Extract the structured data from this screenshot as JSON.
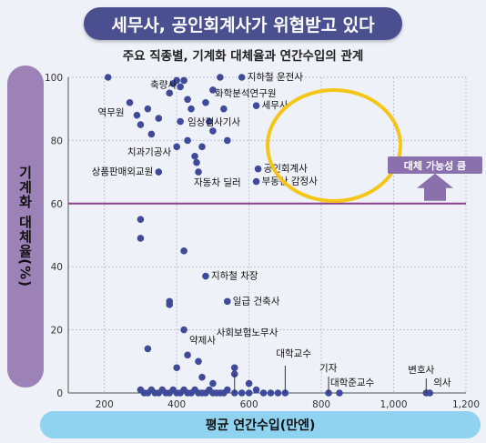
{
  "banner": "세무사, 공인회계사가 위협받고 있다",
  "chart_data": {
    "type": "scatter",
    "title": "주요 직종별, 기계화 대체율과 연간수입의 관계",
    "xlabel": "평균 연간수입(만엔)",
    "ylabel": "기계화 대체율(%)",
    "xlim": [
      100,
      1200
    ],
    "ylim": [
      0,
      100
    ],
    "xticks": [
      "200",
      "400",
      "600",
      "800",
      "1,000",
      "1,200"
    ],
    "yticks": [
      "0",
      "20",
      "40",
      "60",
      "80",
      "100"
    ],
    "threshold": 60,
    "annotation": "대체 가능성 큼",
    "highlight_color": "#f5c518",
    "point_color": "#3f4a9a",
    "labeled_points": [
      {
        "name": "지하철 운전사",
        "x": 580,
        "y": 100
      },
      {
        "name": "축량사",
        "x": 420,
        "y": 99
      },
      {
        "name": "화학분석연구원",
        "x": 500,
        "y": 96
      },
      {
        "name": "역무원",
        "x": 270,
        "y": 92
      },
      {
        "name": "세무사",
        "x": 620,
        "y": 91
      },
      {
        "name": "임상검사기사",
        "x": 410,
        "y": 86
      },
      {
        "name": "치과기공사",
        "x": 400,
        "y": 78
      },
      {
        "name": "상품판매외교원",
        "x": 350,
        "y": 70
      },
      {
        "name": "공인회계사",
        "x": 625,
        "y": 71
      },
      {
        "name": "부동산 감정사",
        "x": 620,
        "y": 67
      },
      {
        "name": "자동차 딜러",
        "x": 460,
        "y": 70
      },
      {
        "name": "지하철 차장",
        "x": 480,
        "y": 37
      },
      {
        "name": "일급 건축사",
        "x": 540,
        "y": 29
      },
      {
        "name": "사회보험노무사",
        "x": 560,
        "y": 6
      },
      {
        "name": "약제사",
        "x": 460,
        "y": 10
      },
      {
        "name": "대학교수",
        "x": 700,
        "y": 0
      },
      {
        "name": "기자",
        "x": 820,
        "y": 0
      },
      {
        "name": "대학준교수",
        "x": 850,
        "y": 0
      },
      {
        "name": "변호사",
        "x": 1090,
        "y": 0
      },
      {
        "name": "의사",
        "x": 1100,
        "y": 0
      }
    ],
    "other_points": [
      [
        210,
        100
      ],
      [
        290,
        88
      ],
      [
        300,
        85
      ],
      [
        320,
        90
      ],
      [
        350,
        87
      ],
      [
        330,
        82
      ],
      [
        380,
        95
      ],
      [
        390,
        98
      ],
      [
        400,
        99
      ],
      [
        410,
        97
      ],
      [
        430,
        93
      ],
      [
        430,
        80
      ],
      [
        440,
        90
      ],
      [
        450,
        75
      ],
      [
        455,
        73
      ],
      [
        470,
        78
      ],
      [
        480,
        92
      ],
      [
        490,
        86
      ],
      [
        500,
        83
      ],
      [
        520,
        100
      ],
      [
        530,
        90
      ],
      [
        540,
        80
      ],
      [
        300,
        55
      ],
      [
        300,
        49
      ],
      [
        420,
        45
      ],
      [
        380,
        29
      ],
      [
        380,
        28
      ],
      [
        420,
        20
      ],
      [
        320,
        14
      ],
      [
        400,
        8
      ],
      [
        430,
        12
      ],
      [
        470,
        5
      ],
      [
        500,
        3
      ],
      [
        300,
        1
      ],
      [
        310,
        0
      ],
      [
        320,
        0
      ],
      [
        330,
        1
      ],
      [
        340,
        0
      ],
      [
        350,
        0
      ],
      [
        360,
        1
      ],
      [
        370,
        0
      ],
      [
        380,
        0
      ],
      [
        390,
        1
      ],
      [
        400,
        0
      ],
      [
        410,
        0
      ],
      [
        420,
        1
      ],
      [
        430,
        0
      ],
      [
        440,
        0
      ],
      [
        450,
        1
      ],
      [
        460,
        0
      ],
      [
        470,
        0
      ],
      [
        480,
        0
      ],
      [
        490,
        1
      ],
      [
        500,
        0
      ],
      [
        510,
        0
      ],
      [
        520,
        0
      ],
      [
        530,
        0
      ],
      [
        540,
        1
      ],
      [
        560,
        0
      ],
      [
        580,
        0
      ],
      [
        600,
        0
      ],
      [
        620,
        1
      ],
      [
        640,
        0
      ],
      [
        660,
        0
      ],
      [
        680,
        0
      ],
      [
        560,
        8
      ],
      [
        600,
        3
      ]
    ]
  }
}
